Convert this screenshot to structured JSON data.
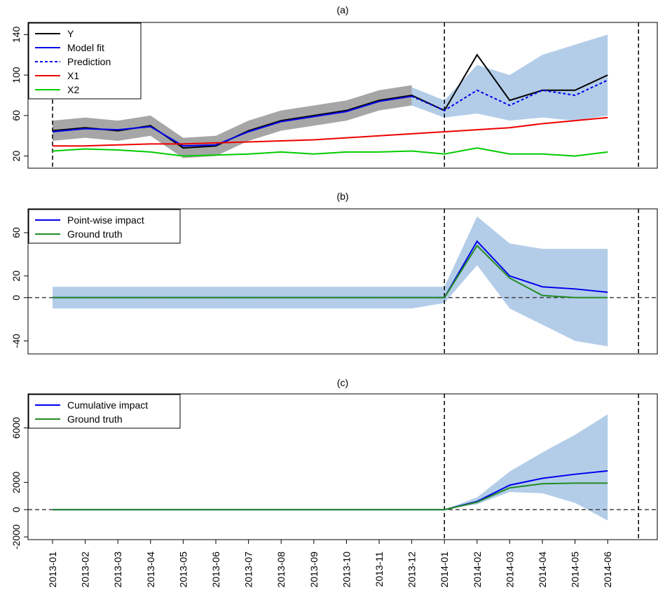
{
  "chart_data": [
    {
      "type": "line",
      "title": "(a)",
      "x": [
        "2013-01",
        "2013-02",
        "2013-03",
        "2013-04",
        "2013-05",
        "2013-06",
        "2013-07",
        "2013-08",
        "2013-09",
        "2013-10",
        "2013-11",
        "2013-12",
        "2014-01",
        "2014-02",
        "2014-03",
        "2014-04",
        "2014-05",
        "2014-06"
      ],
      "ylim": [
        8,
        152
      ],
      "yticks": [
        20,
        60,
        100,
        140
      ],
      "vlines": [
        "2013-01",
        "2014-01"
      ],
      "bands": [
        {
          "color": "#a6a6a6",
          "lower": [
            35,
            38,
            35,
            40,
            18,
            20,
            35,
            45,
            50,
            55,
            65,
            70,
            null,
            null,
            null,
            null,
            null,
            null
          ],
          "upper": [
            55,
            58,
            55,
            60,
            38,
            40,
            55,
            65,
            70,
            75,
            85,
            90,
            null,
            null,
            null,
            null,
            null,
            null
          ]
        },
        {
          "color": "#b3cde9",
          "lower": [
            null,
            null,
            null,
            null,
            null,
            null,
            null,
            null,
            null,
            null,
            null,
            70,
            58,
            62,
            55,
            58,
            55,
            60
          ],
          "upper": [
            null,
            null,
            null,
            null,
            null,
            null,
            null,
            null,
            null,
            null,
            null,
            88,
            75,
            110,
            100,
            120,
            130,
            140
          ]
        }
      ],
      "series": [
        {
          "name": "Y",
          "color": "#000000",
          "values": [
            45,
            48,
            45,
            50,
            28,
            30,
            45,
            55,
            60,
            65,
            75,
            80,
            65,
            120,
            75,
            85,
            85,
            100
          ]
        },
        {
          "name": "Model fit",
          "color": "#0000ee",
          "values": [
            44,
            47,
            46,
            49,
            30,
            31,
            44,
            54,
            59,
            64,
            74,
            79,
            null,
            null,
            null,
            null,
            null,
            null
          ]
        },
        {
          "name": "Prediction",
          "color": "#0000ee",
          "dashed": true,
          "values": [
            null,
            null,
            null,
            null,
            null,
            null,
            null,
            null,
            null,
            null,
            null,
            79,
            65,
            85,
            70,
            85,
            80,
            95
          ]
        },
        {
          "name": "X1",
          "color": "#ee0000",
          "values": [
            30,
            30,
            31,
            32,
            32,
            33,
            34,
            35,
            36,
            38,
            40,
            42,
            44,
            46,
            48,
            52,
            55,
            58
          ]
        },
        {
          "name": "X2",
          "color": "#00cc00",
          "values": [
            25,
            27,
            26,
            24,
            20,
            21,
            22,
            24,
            22,
            24,
            24,
            25,
            22,
            28,
            22,
            22,
            20,
            24
          ]
        }
      ]
    },
    {
      "type": "line",
      "title": "(b)",
      "x": [
        "2013-01",
        "2013-02",
        "2013-03",
        "2013-04",
        "2013-05",
        "2013-06",
        "2013-07",
        "2013-08",
        "2013-09",
        "2013-10",
        "2013-11",
        "2013-12",
        "2014-01",
        "2014-02",
        "2014-03",
        "2014-04",
        "2014-05",
        "2014-06"
      ],
      "ylim": [
        -52,
        82
      ],
      "yticks": [
        -40,
        0,
        20,
        60
      ],
      "hline": 0,
      "vlines": [
        "2014-01"
      ],
      "bands": [
        {
          "color": "#b3cde9",
          "lower": [
            -10,
            -10,
            -10,
            -10,
            -10,
            -10,
            -10,
            -10,
            -10,
            -10,
            -10,
            -10,
            -5,
            30,
            -10,
            -25,
            -40,
            -45
          ],
          "upper": [
            10,
            10,
            10,
            10,
            10,
            10,
            10,
            10,
            10,
            10,
            10,
            10,
            10,
            75,
            50,
            45,
            45,
            45
          ]
        }
      ],
      "series": [
        {
          "name": "Point-wise impact",
          "color": "#0000ee",
          "values": [
            0,
            0,
            0,
            0,
            0,
            0,
            0,
            0,
            0,
            0,
            0,
            0,
            0,
            52,
            20,
            10,
            8,
            5
          ]
        },
        {
          "name": "Ground truth",
          "color": "#228b22",
          "values": [
            0,
            0,
            0,
            0,
            0,
            0,
            0,
            0,
            0,
            0,
            0,
            0,
            0,
            48,
            18,
            2,
            0,
            0
          ]
        }
      ]
    },
    {
      "type": "line",
      "title": "(c)",
      "xaxis_labels": true,
      "x": [
        "2013-01",
        "2013-02",
        "2013-03",
        "2013-04",
        "2013-05",
        "2013-06",
        "2013-07",
        "2013-08",
        "2013-09",
        "2013-10",
        "2013-11",
        "2013-12",
        "2014-01",
        "2014-02",
        "2014-03",
        "2014-04",
        "2014-05",
        "2014-06"
      ],
      "ylim": [
        -2200,
        8500
      ],
      "yticks": [
        -2000,
        0,
        2000,
        6000
      ],
      "hline": 0,
      "vlines": [
        "2014-01"
      ],
      "bands": [
        {
          "color": "#b3cde9",
          "lower": [
            0,
            0,
            0,
            0,
            0,
            0,
            0,
            0,
            0,
            0,
            0,
            0,
            0,
            400,
            1300,
            1200,
            500,
            -800
          ],
          "upper": [
            0,
            0,
            0,
            0,
            0,
            0,
            0,
            0,
            0,
            0,
            0,
            0,
            0,
            900,
            2800,
            4200,
            5500,
            7000
          ]
        }
      ],
      "series": [
        {
          "name": "Cumulative impact",
          "color": "#0000ee",
          "values": [
            0,
            0,
            0,
            0,
            0,
            0,
            0,
            0,
            0,
            0,
            0,
            0,
            0,
            600,
            1800,
            2300,
            2600,
            2850
          ]
        },
        {
          "name": "Ground truth",
          "color": "#228b22",
          "values": [
            0,
            0,
            0,
            0,
            0,
            0,
            0,
            0,
            0,
            0,
            0,
            0,
            0,
            550,
            1600,
            1900,
            1950,
            1950
          ]
        }
      ]
    }
  ]
}
